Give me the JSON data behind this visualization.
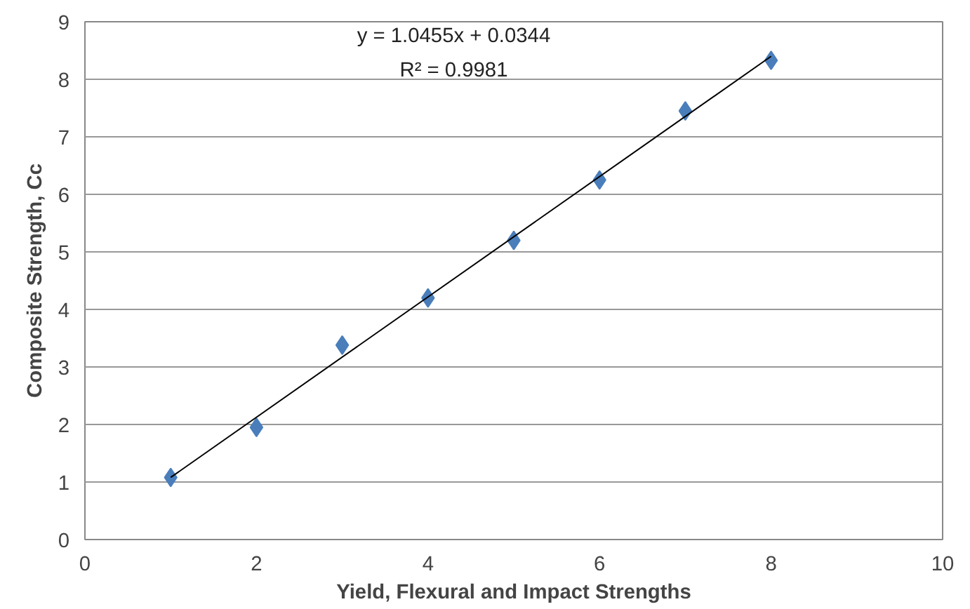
{
  "chart_data": {
    "type": "scatter",
    "xlabel": "Yield, Flexural and Impact Strengths",
    "ylabel": "Composite Strength, Cc",
    "series": [
      {
        "color": "#4a7ebb",
        "marker": "diamond",
        "x": [
          1,
          2,
          3,
          4,
          5,
          6,
          7,
          8
        ],
        "values": [
          1.08,
          1.95,
          3.38,
          4.2,
          5.2,
          6.25,
          7.45,
          8.33
        ]
      },
      {
        "type": "line",
        "marker": "none",
        "color": "#000000",
        "x": [
          1,
          8
        ],
        "values": [
          1.08,
          8.4
        ]
      }
    ],
    "annotations": [
      "y = 1.0455x + 0.0344",
      "R² = 0.9981"
    ],
    "xlim": [
      0,
      10
    ],
    "xticks": [
      0,
      2,
      4,
      6,
      8,
      10
    ],
    "ylim": [
      0,
      9
    ],
    "yticks": [
      0,
      1,
      2,
      3,
      4,
      5,
      6,
      7,
      8,
      9
    ],
    "grid": "y",
    "line_style": "solid"
  }
}
